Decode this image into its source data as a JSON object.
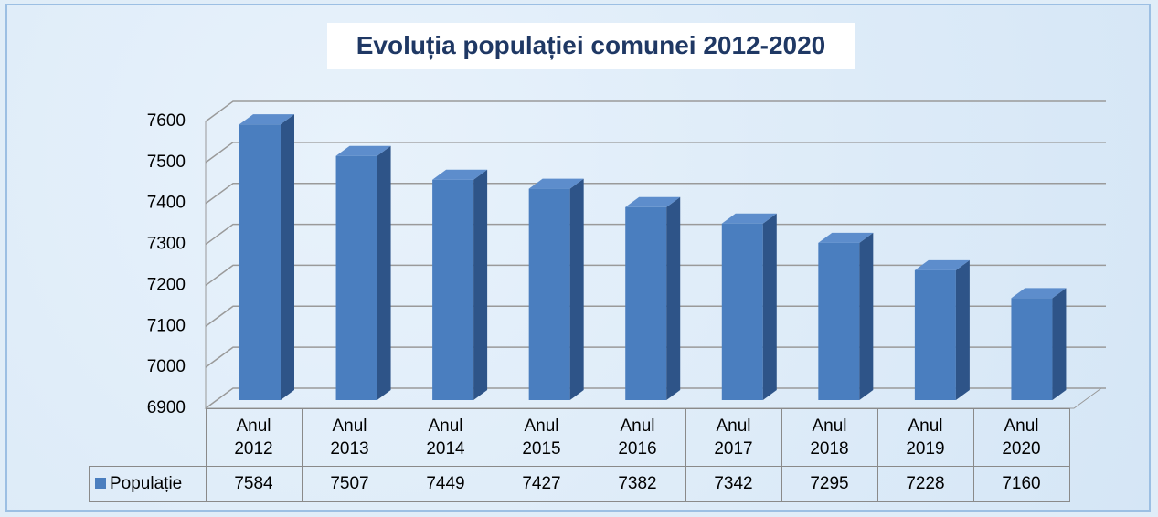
{
  "chart_data": {
    "type": "bar3d",
    "title": "Evoluția populației comunei 2012-2020",
    "categories": [
      "Anul 2012",
      "Anul 2013",
      "Anul 2014",
      "Anul 2015",
      "Anul 2016",
      "Anul 2017",
      "Anul 2018",
      "Anul 2019",
      "Anul 2020"
    ],
    "series": [
      {
        "name": "Populație",
        "color": "#4a7ebf",
        "values": [
          7584,
          7507,
          7449,
          7427,
          7382,
          7342,
          7295,
          7228,
          7160
        ]
      }
    ],
    "ylim": [
      6900,
      7600
    ],
    "yticks": [
      6900,
      7000,
      7100,
      7200,
      7300,
      7400,
      7500,
      7600
    ],
    "grid": true,
    "legend": "data-table"
  }
}
